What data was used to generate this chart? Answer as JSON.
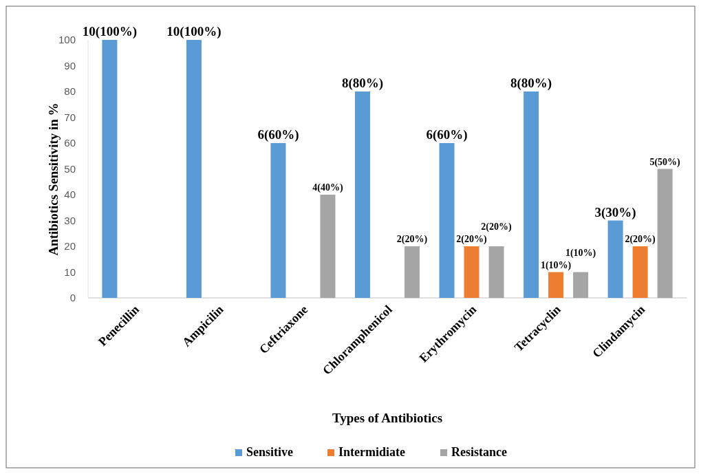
{
  "chart_data": {
    "type": "bar",
    "xlabel": "Types of Antibiotics",
    "ylabel": "Antibiotics Sensitivity in %",
    "categories": [
      "Penecillin",
      "Ampicilin",
      "Ceftriaxone",
      "Chloramphenicol",
      "Erythromycin",
      "Tetracyclin",
      "Clindamycin"
    ],
    "series": [
      {
        "name": "Sensitive",
        "color": "#5b9bd5",
        "values": [
          100,
          100,
          60,
          80,
          60,
          80,
          30
        ],
        "value_labels": [
          "10(100%)",
          "10(100%)",
          "6(60%)",
          "8(80%)",
          "6(60%)",
          "8(80%)",
          "3(30%)"
        ]
      },
      {
        "name": "Intermidiate",
        "color": "#ed7d31",
        "values": [
          null,
          null,
          null,
          null,
          20,
          10,
          20
        ],
        "value_labels": [
          null,
          null,
          null,
          null,
          "2(20%)",
          "1(10%)",
          "2(20%)"
        ]
      },
      {
        "name": "Resistance",
        "color": "#a5a5a5",
        "values": [
          null,
          null,
          40,
          20,
          20,
          10,
          50
        ],
        "value_labels": [
          null,
          null,
          "4(40%)",
          "2(20%)",
          "2(20%)",
          "1(10%)",
          "5(50%)"
        ]
      }
    ],
    "ylim": [
      0,
      100
    ],
    "yticks": [
      0,
      10,
      20,
      30,
      40,
      50,
      60,
      70,
      80,
      90,
      100
    ],
    "grid": false,
    "legend": "bottom"
  }
}
